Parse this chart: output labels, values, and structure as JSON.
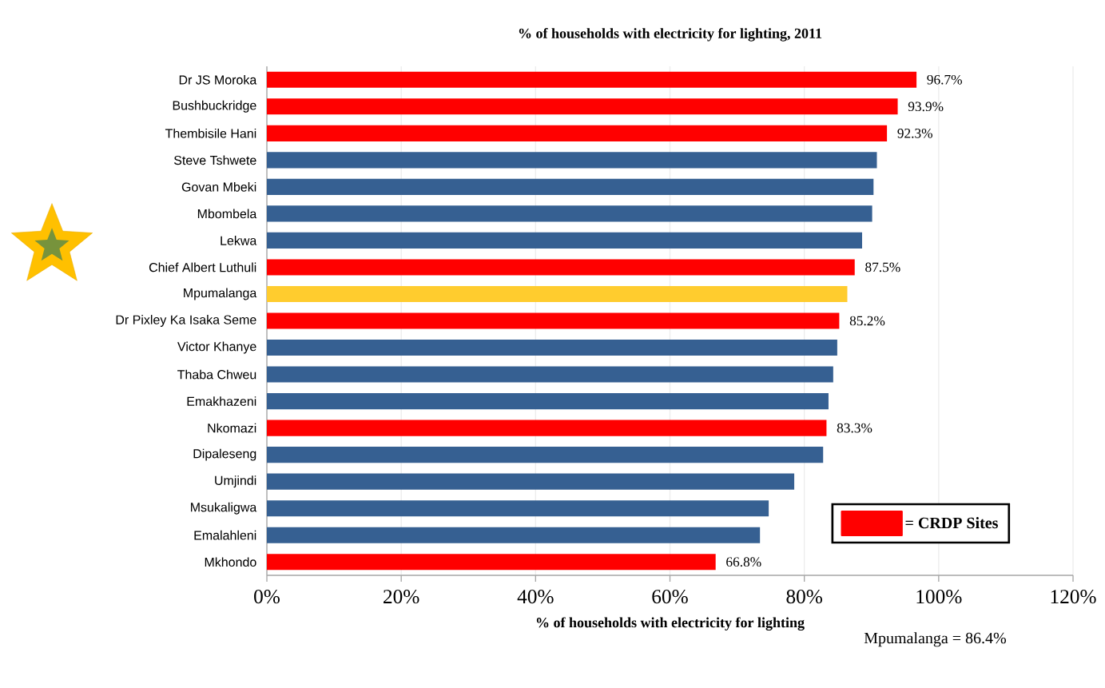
{
  "chart_data": {
    "type": "bar",
    "orientation": "horizontal",
    "title": "% of households with electricity for lighting, 2011",
    "xlabel": "% of households with electricity for lighting",
    "categories": [
      "Dr JS Moroka",
      "Bushbuckridge",
      "Thembisile Hani",
      "Steve Tshwete",
      "Govan Mbeki",
      "Mbombela",
      "Lekwa",
      "Chief Albert Luthuli",
      "Mpumalanga",
      "Dr Pixley Ka Isaka Seme",
      "Victor Khanye",
      "Thaba Chweu",
      "Emakhazeni",
      "Nkomazi",
      "Dipaleseng",
      "Umjindi",
      "Msukaligwa",
      "Emalahleni",
      "Mkhondo"
    ],
    "series": [
      {
        "name": "= CRDP Sites",
        "color": "#ff0000",
        "values": [
          96.7,
          93.9,
          92.3,
          null,
          null,
          null,
          null,
          87.5,
          null,
          85.2,
          null,
          null,
          null,
          83.3,
          null,
          null,
          null,
          null,
          66.8
        ],
        "value_labels": [
          "96.7%",
          "93.9%",
          "92.3%",
          null,
          null,
          null,
          null,
          "87.5%",
          null,
          "85.2%",
          null,
          null,
          null,
          "83.3%",
          null,
          null,
          null,
          null,
          "66.8%"
        ]
      },
      {
        "color": "#366092",
        "values": [
          null,
          null,
          null,
          90.8,
          90.3,
          90.1,
          88.6,
          null,
          null,
          null,
          84.9,
          84.3,
          83.6,
          null,
          82.8,
          78.5,
          74.7,
          73.4,
          null
        ]
      },
      {
        "color": "#ffcc2e",
        "values": [
          null,
          null,
          null,
          null,
          null,
          null,
          null,
          null,
          86.4,
          null,
          null,
          null,
          null,
          null,
          null,
          null,
          null,
          null,
          null
        ]
      }
    ],
    "xlim": [
      0,
      120
    ],
    "xticks": [
      {
        "value": 0,
        "label": "0%"
      },
      {
        "value": 20,
        "label": "20%"
      },
      {
        "value": 40,
        "label": "40%"
      },
      {
        "value": 60,
        "label": "60%"
      },
      {
        "value": 80,
        "label": "80%"
      },
      {
        "value": 100,
        "label": "100%"
      },
      {
        "value": 120,
        "label": "120%"
      }
    ],
    "grid": "x",
    "legend": "bottom right",
    "annotations": [
      "Mpumalanga = 86.4%"
    ]
  }
}
